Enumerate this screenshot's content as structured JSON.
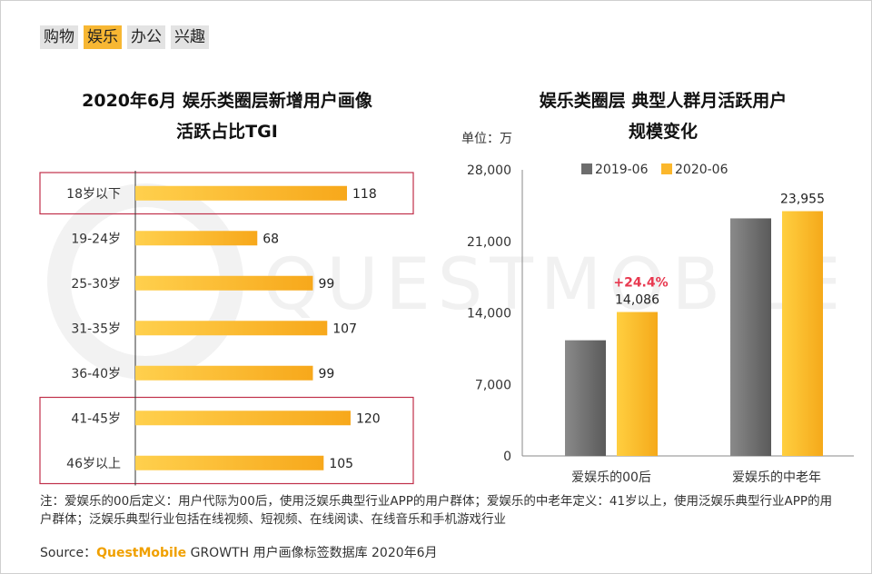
{
  "tabs": [
    {
      "label": "购物",
      "active": false
    },
    {
      "label": "娱乐",
      "active": true
    },
    {
      "label": "办公",
      "active": false
    },
    {
      "label": "兴趣",
      "active": false
    }
  ],
  "watermark": "QUESTMOBILE",
  "left_chart": {
    "title_line1": "2020年6月 娱乐类圈层新增用户画像",
    "title_line2": "活跃占比TGI"
  },
  "right_chart": {
    "title_line1": "娱乐类圈层 典型人群月活跃用户",
    "title_line2": "规模变化",
    "unit": "单位：万",
    "growth_label": "+24.4%"
  },
  "note": "注：爱娱乐的00后定义：用户代际为00后，使用泛娱乐典型行业APP的用户群体；爱娱乐的中老年定义：41岁以上，使用泛娱乐典型行业APP的用户群体；泛娱乐典型行业包括在线视频、短视频、在线阅读、在线音乐和手机游戏行业",
  "source": {
    "prefix": "Source：",
    "brand": "QuestMobile",
    "suffix": " GROWTH 用户画像标签数据库 2020年6月"
  },
  "colors": {
    "bar_yellow": "#fbb72c",
    "bar_gray": "#6d6d6d",
    "highlight_box": "#c0304a",
    "growth_red": "#e8384f",
    "tab_active": "#f7b733"
  },
  "chart_data": [
    {
      "type": "bar",
      "orientation": "horizontal",
      "title": "2020年6月 娱乐类圈层新增用户画像 活跃占比TGI",
      "categories": [
        "18岁以下",
        "19-24岁",
        "25-30岁",
        "31-35岁",
        "36-40岁",
        "41-45岁",
        "46岁以上"
      ],
      "values": [
        118,
        68,
        99,
        107,
        99,
        120,
        105
      ],
      "highlighted_groups": [
        [
          "18岁以下"
        ],
        [
          "41-45岁",
          "46岁以上"
        ]
      ],
      "xlim": [
        0,
        140
      ],
      "grid": false
    },
    {
      "type": "bar",
      "title": "娱乐类圈层 典型人群月活跃用户 规模变化",
      "categories": [
        "爱娱乐的00后",
        "爱娱乐的中老年"
      ],
      "series": [
        {
          "name": "2019-06",
          "values": [
            11320,
            23250
          ]
        },
        {
          "name": "2020-06",
          "values": [
            14086,
            23955
          ]
        }
      ],
      "data_labels": [
        {
          "series": "2020-06",
          "category": "爱娱乐的00后",
          "text": "14,086"
        },
        {
          "series": "2020-06",
          "category": "爱娱乐的中老年",
          "text": "23,955"
        }
      ],
      "ylim": [
        0,
        28000
      ],
      "yticks": [
        "0",
        "7,000",
        "14,000",
        "21,000",
        "28,000"
      ],
      "legend": "top",
      "grid": false
    }
  ]
}
